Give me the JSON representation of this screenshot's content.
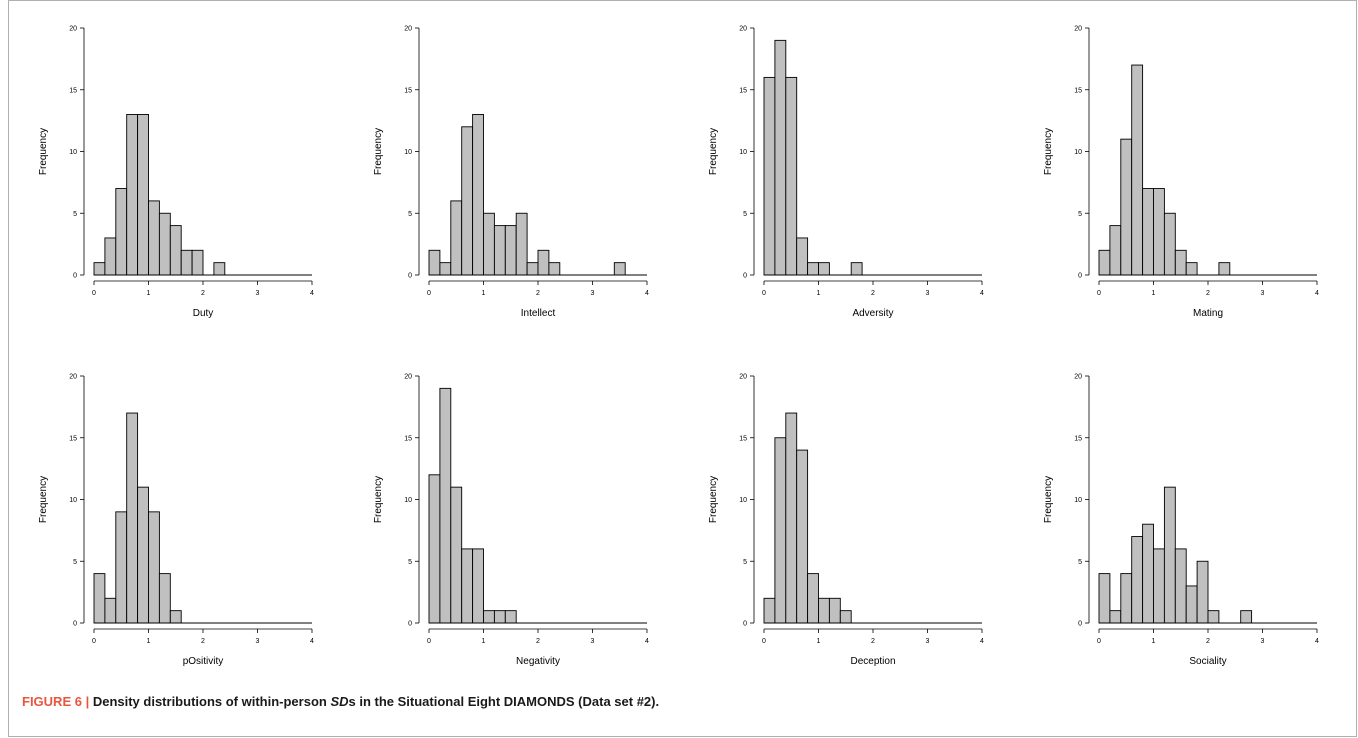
{
  "figure": {
    "caption_label": "FIGURE 6 |",
    "caption_pre": "Density distributions of within-person",
    "caption_sd": "SD",
    "caption_post": "s in the Situational Eight DIAMONDS (Data set #2).",
    "label_color": "#e8563f",
    "bar_fill": "#c0c0c0",
    "bar_stroke": "#000000"
  },
  "chart_data": [
    {
      "type": "bar",
      "xlabel": "Duty",
      "ylabel": "Frequency",
      "xlim": [
        0,
        4
      ],
      "ylim": [
        0,
        20
      ],
      "bin_width": 0.2,
      "bin_starts": [
        0,
        0.2,
        0.4,
        0.6,
        0.8,
        1.0,
        1.2,
        1.4,
        1.6,
        1.8,
        2.0,
        2.2
      ],
      "values": [
        1,
        3,
        7,
        13,
        13,
        6,
        5,
        4,
        2,
        2,
        0,
        1
      ],
      "xticks": [
        "0",
        "1",
        "2",
        "3",
        "4"
      ],
      "yticks": [
        "0",
        "5",
        "10",
        "15",
        "20"
      ]
    },
    {
      "type": "bar",
      "xlabel": "Intellect",
      "ylabel": "Frequency",
      "xlim": [
        0,
        4
      ],
      "ylim": [
        0,
        20
      ],
      "bin_width": 0.2,
      "bin_starts": [
        0,
        0.2,
        0.4,
        0.6,
        0.8,
        1.0,
        1.2,
        1.4,
        1.6,
        1.8,
        2.0,
        2.2,
        2.4,
        2.6,
        2.8,
        3.0,
        3.2,
        3.4
      ],
      "values": [
        2,
        1,
        6,
        12,
        13,
        5,
        4,
        4,
        5,
        1,
        2,
        1,
        0,
        0,
        0,
        0,
        0,
        1
      ],
      "xticks": [
        "0",
        "1",
        "2",
        "3",
        "4"
      ],
      "yticks": [
        "0",
        "5",
        "10",
        "15",
        "20"
      ]
    },
    {
      "type": "bar",
      "xlabel": "Adversity",
      "ylabel": "Frequency",
      "xlim": [
        0,
        4
      ],
      "ylim": [
        0,
        20
      ],
      "bin_width": 0.2,
      "bin_starts": [
        0,
        0.2,
        0.4,
        0.6,
        0.8,
        1.0,
        1.2,
        1.4,
        1.6
      ],
      "values": [
        16,
        19,
        16,
        3,
        1,
        1,
        0,
        0,
        1
      ],
      "xticks": [
        "0",
        "1",
        "2",
        "3",
        "4"
      ],
      "yticks": [
        "0",
        "5",
        "10",
        "15",
        "20"
      ]
    },
    {
      "type": "bar",
      "xlabel": "Mating",
      "ylabel": "Frequency",
      "xlim": [
        0,
        4
      ],
      "ylim": [
        0,
        20
      ],
      "bin_width": 0.2,
      "bin_starts": [
        0,
        0.2,
        0.4,
        0.6,
        0.8,
        1.0,
        1.2,
        1.4,
        1.6,
        1.8,
        2.0,
        2.2
      ],
      "values": [
        2,
        4,
        11,
        17,
        7,
        7,
        5,
        2,
        1,
        0,
        0,
        1
      ],
      "xticks": [
        "0",
        "1",
        "2",
        "3",
        "4"
      ],
      "yticks": [
        "0",
        "5",
        "10",
        "15",
        "20"
      ]
    },
    {
      "type": "bar",
      "xlabel": "pOsitivity",
      "ylabel": "Frequency",
      "xlim": [
        0,
        4
      ],
      "ylim": [
        0,
        20
      ],
      "bin_width": 0.2,
      "bin_starts": [
        0,
        0.2,
        0.4,
        0.6,
        0.8,
        1.0,
        1.2,
        1.4
      ],
      "values": [
        4,
        2,
        9,
        17,
        11,
        9,
        4,
        1
      ],
      "xticks": [
        "0",
        "1",
        "2",
        "3",
        "4"
      ],
      "yticks": [
        "0",
        "5",
        "10",
        "15",
        "20"
      ]
    },
    {
      "type": "bar",
      "xlabel": "Negativity",
      "ylabel": "Frequency",
      "xlim": [
        0,
        4
      ],
      "ylim": [
        0,
        20
      ],
      "bin_width": 0.2,
      "bin_starts": [
        0,
        0.2,
        0.4,
        0.6,
        0.8,
        1.0,
        1.2,
        1.4
      ],
      "values": [
        12,
        19,
        11,
        6,
        6,
        1,
        1,
        1
      ],
      "xticks": [
        "0",
        "1",
        "2",
        "3",
        "4"
      ],
      "yticks": [
        "0",
        "5",
        "10",
        "15",
        "20"
      ]
    },
    {
      "type": "bar",
      "xlabel": "Deception",
      "ylabel": "Frequency",
      "xlim": [
        0,
        4
      ],
      "ylim": [
        0,
        20
      ],
      "bin_width": 0.2,
      "bin_starts": [
        0,
        0.2,
        0.4,
        0.6,
        0.8,
        1.0,
        1.2,
        1.4
      ],
      "values": [
        2,
        15,
        17,
        14,
        4,
        2,
        2,
        1
      ],
      "xticks": [
        "0",
        "1",
        "2",
        "3",
        "4"
      ],
      "yticks": [
        "0",
        "5",
        "10",
        "15",
        "20"
      ]
    },
    {
      "type": "bar",
      "xlabel": "Sociality",
      "ylabel": "Frequency",
      "xlim": [
        0,
        4
      ],
      "ylim": [
        0,
        20
      ],
      "bin_width": 0.2,
      "bin_starts": [
        0,
        0.2,
        0.4,
        0.6,
        0.8,
        1.0,
        1.2,
        1.4,
        1.6,
        1.8,
        2.0,
        2.2,
        2.4,
        2.6
      ],
      "values": [
        4,
        1,
        4,
        7,
        8,
        6,
        11,
        6,
        3,
        5,
        1,
        0,
        0,
        1
      ],
      "xticks": [
        "0",
        "1",
        "2",
        "3",
        "4"
      ],
      "yticks": [
        "0",
        "5",
        "10",
        "15",
        "20"
      ]
    }
  ]
}
